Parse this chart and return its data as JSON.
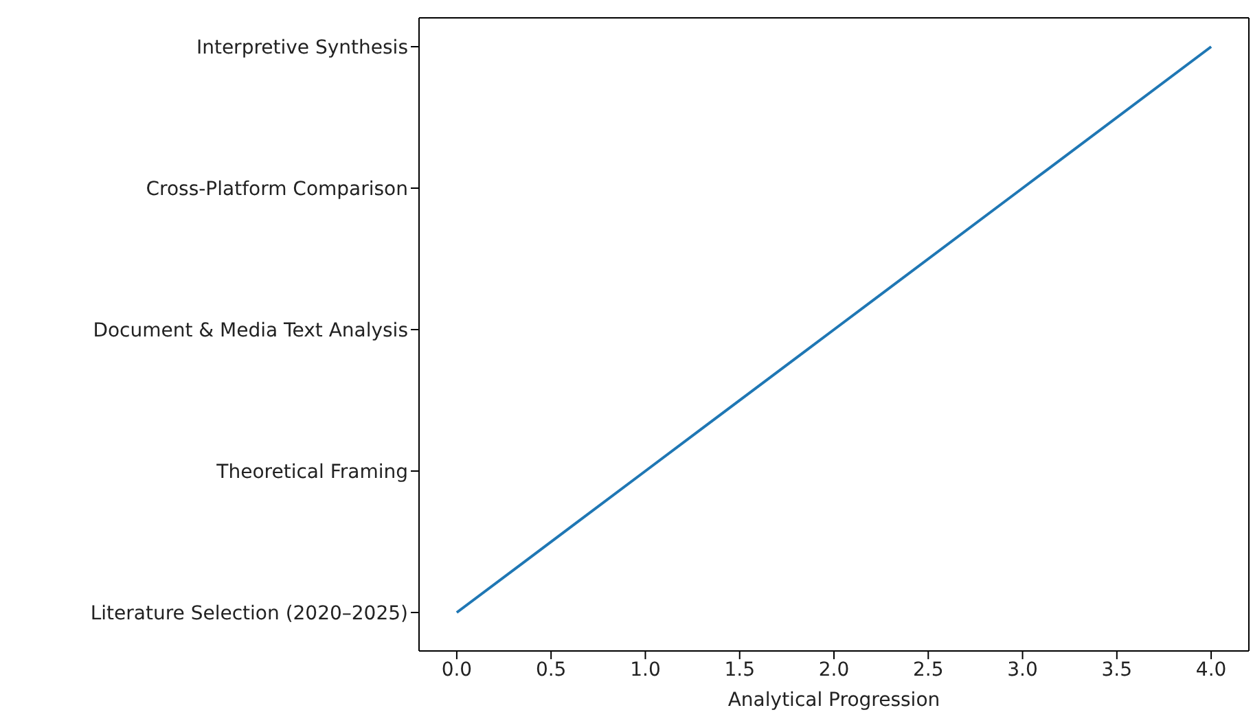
{
  "chart_data": {
    "type": "line",
    "orientation": "horizontal",
    "xlabel": "Analytical Progression",
    "categories": [
      "Interpretive Synthesis",
      "Cross-Platform Comparison",
      "Document & Media Text Analysis",
      "Theoretical Framing",
      "Literature Selection (2020–2025)"
    ],
    "series": [
      {
        "color": "#1f77b4",
        "values": [
          4,
          3,
          2,
          1,
          0
        ]
      }
    ],
    "xlim": [
      -0.2,
      4.2
    ],
    "xticks": [
      {
        "value": 0,
        "label": "0.0"
      },
      {
        "value": 0.5,
        "label": "0.5"
      },
      {
        "value": 1,
        "label": "1.0"
      },
      {
        "value": 1.5,
        "label": "1.5"
      },
      {
        "value": 2,
        "label": "2.0"
      },
      {
        "value": 2.5,
        "label": "2.5"
      },
      {
        "value": 3,
        "label": "3.0"
      },
      {
        "value": 3.5,
        "label": "3.5"
      },
      {
        "value": 4,
        "label": "4.0"
      }
    ],
    "marker": "none",
    "line_style": "solid",
    "grid": false,
    "legend": false
  }
}
